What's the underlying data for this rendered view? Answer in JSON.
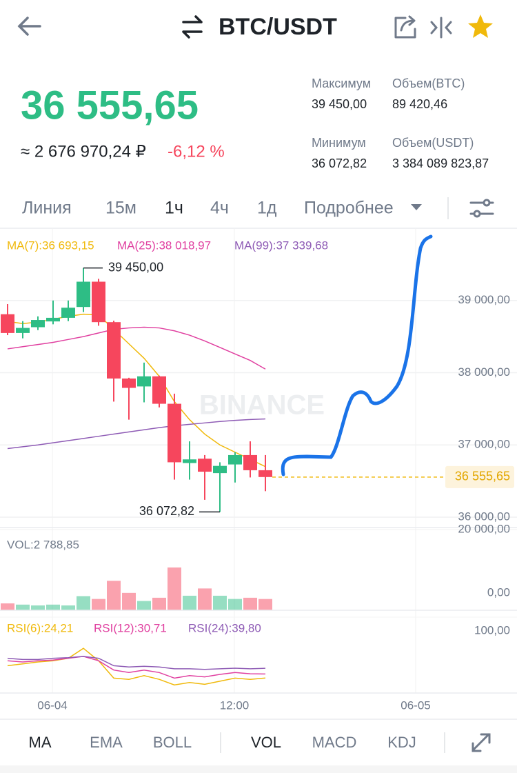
{
  "header": {
    "title": "BTC/USDT"
  },
  "ticker": {
    "price": "36 555,65",
    "fiat": "≈ 2 676 970,24 ₽",
    "change": "-6,12 %",
    "stats": [
      {
        "label": "Максимум",
        "value": "39 450,00"
      },
      {
        "label": "Объем(BTC)",
        "value": "89 420,46"
      },
      {
        "label": "Минимум",
        "value": "36 072,82"
      },
      {
        "label": "Объем(USDT)",
        "value": "3 384 089 823,87"
      }
    ]
  },
  "intervals": [
    "Линия",
    "15м",
    "1ч",
    "4ч",
    "1д",
    "Подробнее"
  ],
  "indicators": [
    "MA",
    "EMA",
    "BOLL",
    "VOL",
    "MACD",
    "KDJ"
  ],
  "chart_data": [
    {
      "type": "candlestick",
      "watermark": "BINANCE",
      "up_color": "#2ebd85",
      "down_color": "#f6465d",
      "open": [
        38810,
        38550,
        38630,
        38710,
        38760,
        38910,
        39260,
        38700,
        37920,
        37810,
        37950,
        37570,
        36750,
        36810,
        36610,
        36730,
        36860,
        36650
      ],
      "close": [
        38550,
        38620,
        38730,
        38760,
        38900,
        39260,
        38700,
        37920,
        37790,
        37950,
        37570,
        36760,
        36800,
        36630,
        36710,
        36860,
        36650,
        36555.65
      ],
      "high": [
        38950,
        38714,
        38780,
        39000,
        39000,
        39450,
        39300,
        38720,
        37930,
        38140,
        37960,
        37710,
        37050,
        36860,
        36760,
        36900,
        37050,
        36860
      ],
      "low": [
        38520,
        38476,
        38590,
        38670,
        38714,
        38840,
        38650,
        37600,
        37350,
        37590,
        37520,
        36520,
        36520,
        36240,
        36072.82,
        36480,
        36550,
        36360
      ],
      "series": [
        {
          "name": "MA(7):36 693,15",
          "color": "#f0b90b",
          "values": [
            38710,
            38680,
            38700,
            38740,
            38780,
            38810,
            38800,
            38600,
            38400,
            38200,
            37950,
            37600,
            37350,
            37150,
            37000,
            36900,
            36800,
            36700
          ]
        },
        {
          "name": "MA(25):38 018,97",
          "color": "#e040a0",
          "values": [
            38330,
            38360,
            38390,
            38420,
            38460,
            38500,
            38550,
            38600,
            38620,
            38630,
            38620,
            38580,
            38520,
            38440,
            38350,
            38260,
            38170,
            38050
          ]
        },
        {
          "name": "MA(99):37 339,68",
          "color": "#8e5bb5",
          "values": [
            36950,
            36975,
            37000,
            37030,
            37060,
            37090,
            37120,
            37150,
            37180,
            37210,
            37240,
            37265,
            37285,
            37305,
            37325,
            37340,
            37352,
            37360
          ]
        }
      ],
      "annotations": {
        "high": "39 450,00",
        "low": "36 072,82"
      },
      "last_price": {
        "value": 36555.65,
        "label": "36 555,65"
      },
      "ylim": [
        35857,
        40000
      ],
      "yticks": [
        {
          "value": 39000,
          "label": "39 000,00"
        },
        {
          "value": 38000,
          "label": "38 000,00"
        },
        {
          "value": 37000,
          "label": "37 000,00"
        },
        {
          "value": 36000,
          "label": "36 000,00"
        }
      ],
      "x_labels": [
        "06-04",
        "12:00",
        "06-05"
      ],
      "grid": true
    },
    {
      "type": "bar",
      "title": "VOL:2 788,85",
      "values": [
        1700,
        1400,
        1200,
        1400,
        1200,
        3500,
        2800,
        7300,
        4300,
        2300,
        3100,
        10600,
        3600,
        5400,
        3600,
        2800,
        3100,
        2788.85
      ],
      "ylim": [
        0,
        20500
      ],
      "yticks": [
        {
          "value": 20000,
          "label": "20 000,00"
        },
        {
          "value": 0,
          "label": "0,00"
        }
      ]
    },
    {
      "type": "line",
      "series": [
        {
          "name": "RSI(6):24,21",
          "color": "#f0b90b",
          "values": [
            44,
            47,
            50,
            52,
            56,
            72,
            52,
            24,
            22,
            28,
            22,
            13,
            17,
            14,
            19,
            24,
            22,
            24.21
          ]
        },
        {
          "name": "RSI(12):30,71",
          "color": "#e040a0",
          "values": [
            52,
            50,
            52,
            53,
            56,
            59,
            52,
            37,
            33,
            37,
            33,
            24,
            28,
            26,
            30,
            33,
            31,
            30.71
          ]
        },
        {
          "name": "RSI(24):39,80",
          "color": "#8e5bb5",
          "values": [
            56,
            54,
            54,
            56,
            57,
            59,
            56,
            44,
            42,
            43,
            42,
            39,
            39,
            38,
            39,
            40,
            39,
            39.8
          ]
        }
      ],
      "ylim": [
        0,
        100
      ],
      "yticks": [
        {
          "value": 100,
          "label": "100,00"
        }
      ]
    }
  ]
}
